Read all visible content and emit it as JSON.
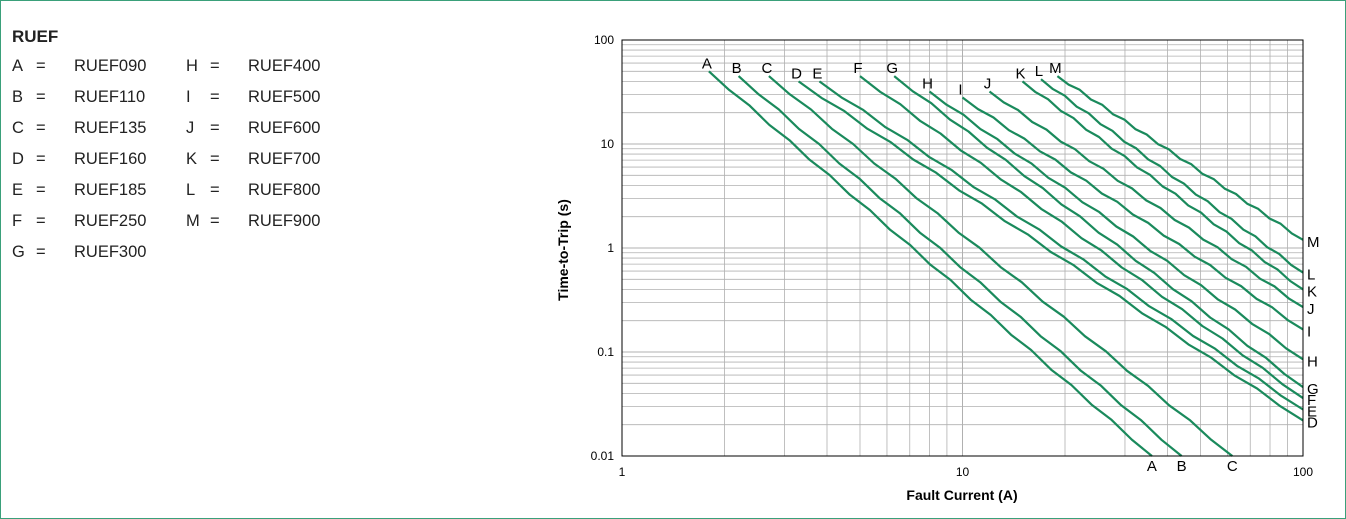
{
  "legend": {
    "title": "RUEF",
    "separator": "=",
    "columns": [
      [
        {
          "key": "A",
          "value": "RUEF090"
        },
        {
          "key": "B",
          "value": "RUEF110"
        },
        {
          "key": "C",
          "value": "RUEF135"
        },
        {
          "key": "D",
          "value": "RUEF160"
        },
        {
          "key": "E",
          "value": "RUEF185"
        },
        {
          "key": "F",
          "value": "RUEF250"
        },
        {
          "key": "G",
          "value": "RUEF300"
        }
      ],
      [
        {
          "key": "H",
          "value": "RUEF400"
        },
        {
          "key": "I",
          "value": "RUEF500"
        },
        {
          "key": "J",
          "value": "RUEF600"
        },
        {
          "key": "K",
          "value": "RUEF700"
        },
        {
          "key": "L",
          "value": "RUEF800"
        },
        {
          "key": "M",
          "value": "RUEF900"
        }
      ]
    ]
  },
  "colors": {
    "curve": "#1a8a5c",
    "frame": "#3aa07a",
    "grid": "#b0b0b0",
    "axis": "#000000"
  },
  "chart_data": {
    "type": "line",
    "xlabel": "Fault Current (A)",
    "ylabel": "Time-to-Trip (s)",
    "xscale": "log",
    "yscale": "log",
    "xlim": [
      1,
      100
    ],
    "ylim": [
      0.01,
      100
    ],
    "x_tick_labels": [
      "1",
      "10",
      "100"
    ],
    "y_tick_labels": [
      "100",
      "10",
      "1",
      "0.1",
      "0.01"
    ],
    "grid": true,
    "series": [
      {
        "name": "A",
        "points": [
          [
            1.8,
            50
          ],
          [
            36,
            0.01
          ]
        ]
      },
      {
        "name": "B",
        "points": [
          [
            2.2,
            45
          ],
          [
            44,
            0.01
          ]
        ]
      },
      {
        "name": "C",
        "points": [
          [
            2.7,
            45
          ],
          [
            62,
            0.01
          ]
        ]
      },
      {
        "name": "D",
        "points": [
          [
            3.3,
            40
          ],
          [
            100,
            0.022
          ]
        ]
      },
      {
        "name": "E",
        "points": [
          [
            3.8,
            40
          ],
          [
            100,
            0.028
          ]
        ]
      },
      {
        "name": "F",
        "points": [
          [
            5.0,
            45
          ],
          [
            100,
            0.036
          ]
        ]
      },
      {
        "name": "G",
        "points": [
          [
            6.3,
            45
          ],
          [
            100,
            0.046
          ]
        ]
      },
      {
        "name": "H",
        "points": [
          [
            8.0,
            32
          ],
          [
            100,
            0.085
          ]
        ]
      },
      {
        "name": "I",
        "points": [
          [
            10.0,
            28
          ],
          [
            100,
            0.165
          ]
        ]
      },
      {
        "name": "J",
        "points": [
          [
            12.0,
            32
          ],
          [
            100,
            0.27
          ]
        ]
      },
      {
        "name": "K",
        "points": [
          [
            15.0,
            40
          ],
          [
            100,
            0.4
          ]
        ]
      },
      {
        "name": "L",
        "points": [
          [
            17.0,
            42
          ],
          [
            100,
            0.58
          ]
        ]
      },
      {
        "name": "M",
        "points": [
          [
            19.0,
            45
          ],
          [
            100,
            1.2
          ]
        ]
      }
    ]
  }
}
